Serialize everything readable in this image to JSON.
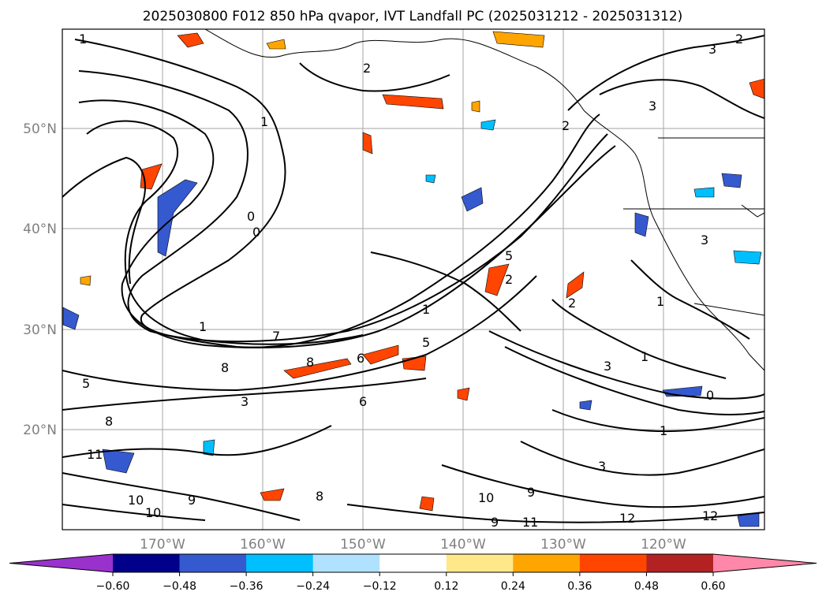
{
  "title": "2025030800 F012 850 hPa qvapor, IVT Landfall PC (2025031212 - 2025031312)",
  "map": {
    "lat_labels": [
      "50°N",
      "40°N",
      "30°N",
      "20°N"
    ],
    "lon_labels": [
      "170°W",
      "160°W",
      "150°W",
      "140°W",
      "130°W",
      "120°W"
    ],
    "lat_range": [
      10,
      60
    ],
    "lon_range": [
      -180,
      -110
    ],
    "gridlines": true
  },
  "contour_labels": [
    "1",
    "1",
    "1",
    "1",
    "1",
    "1",
    "1",
    "2",
    "2",
    "2",
    "2",
    "3",
    "3",
    "3",
    "3",
    "3",
    "3",
    "5",
    "5",
    "5",
    "6",
    "6",
    "7",
    "8",
    "8",
    "8",
    "8",
    "9",
    "9",
    "9",
    "10",
    "10",
    "10",
    "11",
    "11",
    "12",
    "12",
    "0",
    "0",
    "0",
    "2"
  ],
  "colorbar": {
    "ticks": [
      "−0.60",
      "−0.48",
      "−0.36",
      "−0.24",
      "−0.12",
      "0.12",
      "0.24",
      "0.36",
      "0.48",
      "0.60"
    ],
    "colors": [
      "#9932cc",
      "#00008b",
      "#3559cf",
      "#00bfff",
      "#b0e2ff",
      "#ffffff",
      "#ffe88a",
      "#ffa500",
      "#ff4500",
      "#b22222",
      "#ff88aa"
    ]
  }
}
